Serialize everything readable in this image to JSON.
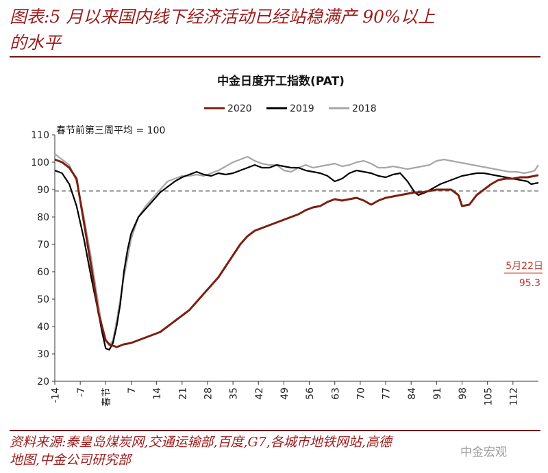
{
  "figure": {
    "title_line1": "图表:5 月以来国内线下经济活动已经站稳满产 90%以上",
    "title_line2": "的水平",
    "source_line1": "资料来源:秦皇岛煤炭网,交通运输部,百度,G7,各城市地铁网站,高德",
    "source_line2": "地图,中金公司研究部",
    "watermark": "中金宏观"
  },
  "colors": {
    "title": "#9b1c1c",
    "s2020": "#7b1f10",
    "s2019": "#000000",
    "s2018": "#a6a6a6",
    "refline": "#666666",
    "annotation": "#c0392b"
  },
  "chart_data": {
    "type": "line",
    "title": "中金日度开工指数(PAT)",
    "note": "春节前第三周平均 = 100",
    "xlabel": "",
    "ylabel": "",
    "xlim": [
      -14,
      119
    ],
    "ylim": [
      20,
      110
    ],
    "y_ticks": [
      20,
      30,
      40,
      50,
      60,
      70,
      80,
      90,
      100,
      110
    ],
    "x_ticks": [
      {
        "value": -14,
        "label": "-14"
      },
      {
        "value": -7,
        "label": "-7"
      },
      {
        "value": 0,
        "label": "春节"
      },
      {
        "value": 7,
        "label": "7"
      },
      {
        "value": 14,
        "label": "14"
      },
      {
        "value": 21,
        "label": "21"
      },
      {
        "value": 28,
        "label": "28"
      },
      {
        "value": 35,
        "label": "35"
      },
      {
        "value": 42,
        "label": "42"
      },
      {
        "value": 49,
        "label": "49"
      },
      {
        "value": 56,
        "label": "56"
      },
      {
        "value": 63,
        "label": "63"
      },
      {
        "value": 70,
        "label": "70"
      },
      {
        "value": 77,
        "label": "77"
      },
      {
        "value": 84,
        "label": "84"
      },
      {
        "value": 91,
        "label": "91"
      },
      {
        "value": 98,
        "label": "98"
      },
      {
        "value": 105,
        "label": "105"
      },
      {
        "value": 112,
        "label": "112"
      }
    ],
    "reference_line": {
      "y": 89.5,
      "style": "dashed"
    },
    "legend": {
      "position": "top-center"
    },
    "annotation": {
      "date": "5月22日",
      "value": "95.3"
    },
    "series": [
      {
        "name": "2020",
        "color": "#7b1f10",
        "points": [
          [
            -14,
            101
          ],
          [
            -12,
            100
          ],
          [
            -10,
            98
          ],
          [
            -8,
            94
          ],
          [
            -6,
            78
          ],
          [
            -4,
            62
          ],
          [
            -2,
            45
          ],
          [
            0,
            35
          ],
          [
            1,
            33.5
          ],
          [
            2,
            33
          ],
          [
            3,
            32.5
          ],
          [
            5,
            33.5
          ],
          [
            7,
            34
          ],
          [
            9,
            35
          ],
          [
            11,
            36
          ],
          [
            13,
            37
          ],
          [
            15,
            38
          ],
          [
            17,
            40
          ],
          [
            19,
            42
          ],
          [
            21,
            44
          ],
          [
            23,
            46
          ],
          [
            25,
            49
          ],
          [
            27,
            52
          ],
          [
            29,
            55
          ],
          [
            31,
            58
          ],
          [
            33,
            62
          ],
          [
            35,
            66
          ],
          [
            37,
            70
          ],
          [
            39,
            73
          ],
          [
            41,
            75
          ],
          [
            43,
            76
          ],
          [
            45,
            77
          ],
          [
            47,
            78
          ],
          [
            49,
            79
          ],
          [
            51,
            80
          ],
          [
            53,
            81
          ],
          [
            55,
            82.5
          ],
          [
            57,
            83.5
          ],
          [
            59,
            84
          ],
          [
            61,
            85.5
          ],
          [
            63,
            86.5
          ],
          [
            65,
            86
          ],
          [
            67,
            86.5
          ],
          [
            69,
            87
          ],
          [
            71,
            86
          ],
          [
            73,
            84.5
          ],
          [
            75,
            86
          ],
          [
            77,
            87
          ],
          [
            79,
            87.5
          ],
          [
            81,
            88
          ],
          [
            83,
            88.5
          ],
          [
            85,
            89
          ],
          [
            87,
            89
          ],
          [
            89,
            89.5
          ],
          [
            91,
            90
          ],
          [
            93,
            90
          ],
          [
            95,
            90
          ],
          [
            97,
            88
          ],
          [
            98,
            84
          ],
          [
            100,
            84.5
          ],
          [
            102,
            88
          ],
          [
            104,
            90
          ],
          [
            106,
            92
          ],
          [
            108,
            93.5
          ],
          [
            110,
            94
          ],
          [
            112,
            94
          ],
          [
            114,
            94.5
          ],
          [
            116,
            94.5
          ],
          [
            118,
            95
          ],
          [
            119,
            95.3
          ]
        ]
      },
      {
        "name": "2019",
        "color": "#000000",
        "points": [
          [
            -14,
            97
          ],
          [
            -12,
            96
          ],
          [
            -10,
            92
          ],
          [
            -8,
            84
          ],
          [
            -6,
            72
          ],
          [
            -4,
            58
          ],
          [
            -2,
            45
          ],
          [
            -1,
            38
          ],
          [
            0,
            32
          ],
          [
            1,
            31.5
          ],
          [
            2,
            34
          ],
          [
            3,
            40
          ],
          [
            4,
            48
          ],
          [
            5,
            60
          ],
          [
            6,
            68
          ],
          [
            7,
            74
          ],
          [
            9,
            80
          ],
          [
            11,
            83
          ],
          [
            13,
            86
          ],
          [
            15,
            89
          ],
          [
            17,
            91
          ],
          [
            19,
            93
          ],
          [
            21,
            94.5
          ],
          [
            23,
            95.5
          ],
          [
            25,
            96.5
          ],
          [
            27,
            95.5
          ],
          [
            29,
            95
          ],
          [
            31,
            96
          ],
          [
            33,
            95.5
          ],
          [
            35,
            96
          ],
          [
            37,
            97
          ],
          [
            39,
            98
          ],
          [
            41,
            99
          ],
          [
            43,
            98
          ],
          [
            45,
            98
          ],
          [
            47,
            99
          ],
          [
            49,
            98.5
          ],
          [
            51,
            98
          ],
          [
            53,
            98
          ],
          [
            55,
            97
          ],
          [
            57,
            96.5
          ],
          [
            59,
            96
          ],
          [
            61,
            95
          ],
          [
            63,
            93
          ],
          [
            65,
            94
          ],
          [
            67,
            96
          ],
          [
            69,
            97
          ],
          [
            71,
            96.5
          ],
          [
            73,
            96
          ],
          [
            75,
            95
          ],
          [
            77,
            94.5
          ],
          [
            79,
            95.5
          ],
          [
            81,
            96
          ],
          [
            83,
            93
          ],
          [
            85,
            89
          ],
          [
            86,
            88
          ],
          [
            88,
            89
          ],
          [
            90,
            90.5
          ],
          [
            92,
            92
          ],
          [
            94,
            93
          ],
          [
            96,
            94
          ],
          [
            98,
            95
          ],
          [
            100,
            95.5
          ],
          [
            102,
            96
          ],
          [
            104,
            96
          ],
          [
            106,
            95.5
          ],
          [
            108,
            95
          ],
          [
            110,
            94.5
          ],
          [
            112,
            94
          ],
          [
            114,
            93.5
          ],
          [
            116,
            93
          ],
          [
            117,
            92
          ],
          [
            119,
            92.5
          ]
        ]
      },
      {
        "name": "2018",
        "color": "#a6a6a6",
        "points": [
          [
            -14,
            103
          ],
          [
            -12,
            101
          ],
          [
            -10,
            99
          ],
          [
            -8,
            93
          ],
          [
            -6,
            80
          ],
          [
            -4,
            65
          ],
          [
            -2,
            48
          ],
          [
            -1,
            40
          ],
          [
            0,
            35
          ],
          [
            1,
            33
          ],
          [
            2,
            35
          ],
          [
            3,
            42
          ],
          [
            4,
            50
          ],
          [
            5,
            58
          ],
          [
            6,
            65
          ],
          [
            7,
            72
          ],
          [
            9,
            80
          ],
          [
            11,
            84
          ],
          [
            13,
            87
          ],
          [
            15,
            90
          ],
          [
            17,
            93
          ],
          [
            19,
            94
          ],
          [
            21,
            95
          ],
          [
            23,
            95
          ],
          [
            25,
            95.5
          ],
          [
            27,
            95
          ],
          [
            29,
            96
          ],
          [
            31,
            97
          ],
          [
            33,
            98.5
          ],
          [
            35,
            100
          ],
          [
            37,
            101
          ],
          [
            39,
            102
          ],
          [
            41,
            100.5
          ],
          [
            43,
            99.5
          ],
          [
            45,
            99
          ],
          [
            47,
            99
          ],
          [
            49,
            97
          ],
          [
            51,
            96.5
          ],
          [
            53,
            98
          ],
          [
            55,
            99
          ],
          [
            57,
            98
          ],
          [
            59,
            98.5
          ],
          [
            61,
            99
          ],
          [
            63,
            99.5
          ],
          [
            65,
            98.5
          ],
          [
            67,
            99
          ],
          [
            69,
            100
          ],
          [
            71,
            100.5
          ],
          [
            73,
            99.5
          ],
          [
            75,
            98
          ],
          [
            77,
            98
          ],
          [
            79,
            98.5
          ],
          [
            81,
            98
          ],
          [
            83,
            97.5
          ],
          [
            85,
            98
          ],
          [
            87,
            98.5
          ],
          [
            89,
            99
          ],
          [
            91,
            100.5
          ],
          [
            93,
            101
          ],
          [
            95,
            100.5
          ],
          [
            97,
            100
          ],
          [
            99,
            99.5
          ],
          [
            101,
            99
          ],
          [
            103,
            98.5
          ],
          [
            105,
            98
          ],
          [
            107,
            97.5
          ],
          [
            109,
            97
          ],
          [
            111,
            96.5
          ],
          [
            113,
            96.5
          ],
          [
            115,
            96
          ],
          [
            117,
            96.5
          ],
          [
            118,
            97
          ],
          [
            119,
            99
          ]
        ]
      }
    ]
  }
}
